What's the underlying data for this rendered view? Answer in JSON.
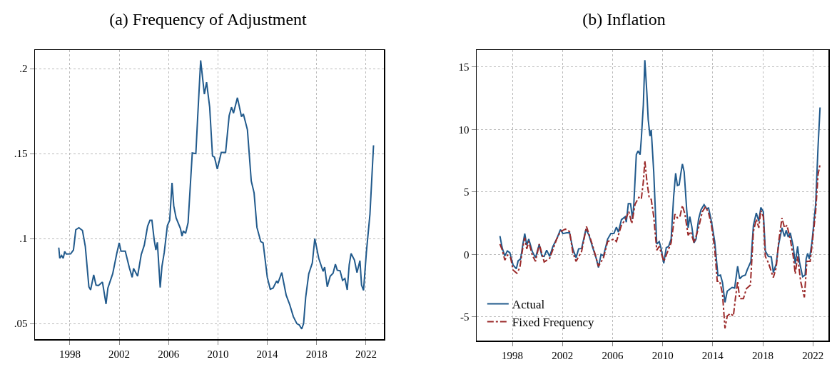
{
  "chart_data": [
    {
      "type": "line",
      "title": "(a) Frequency of Adjustment",
      "xlim": [
        1995.17,
        2023.45
      ],
      "ylim": [
        0.0408,
        0.211
      ],
      "xticks": [
        1998,
        2002,
        2006,
        2010,
        2014,
        2018,
        2022
      ],
      "yticks": [
        {
          "value": 0.05,
          "label": ".05"
        },
        {
          "value": 0.1,
          "label": ".1"
        },
        {
          "value": 0.15,
          "label": ".15"
        },
        {
          "value": 0.2,
          "label": ".2"
        }
      ],
      "grid": true,
      "legend": false,
      "marker": "none",
      "series": [
        {
          "color": "#215a8c",
          "line_style": "solid",
          "x": [
            1997.1,
            1997.18,
            1997.33,
            1997.46,
            1997.58,
            1997.71,
            1998.06,
            1998.29,
            1998.48,
            1998.73,
            1999.02,
            1999.25,
            1999.54,
            1999.68,
            1999.93,
            2000.12,
            2000.31,
            2000.64,
            2000.93,
            2001.08,
            2001.47,
            2001.8,
            2002.0,
            2002.14,
            2002.49,
            2002.82,
            2003.05,
            2003.16,
            2003.49,
            2003.78,
            2004.03,
            2004.3,
            2004.49,
            2004.65,
            2004.84,
            2004.97,
            2005.09,
            2005.32,
            2005.46,
            2005.65,
            2005.9,
            2006.09,
            2006.28,
            2006.42,
            2006.61,
            2006.96,
            2007.09,
            2007.19,
            2007.38,
            2007.58,
            2007.92,
            2008.21,
            2008.36,
            2008.6,
            2008.9,
            2009.08,
            2009.33,
            2009.56,
            2009.72,
            2009.95,
            2010.27,
            2010.62,
            2010.91,
            2011.1,
            2011.26,
            2011.58,
            2011.91,
            2012.06,
            2012.39,
            2012.7,
            2012.93,
            2013.16,
            2013.47,
            2013.66,
            2014.0,
            2014.24,
            2014.47,
            2014.76,
            2014.86,
            2015.17,
            2015.53,
            2015.82,
            2016.11,
            2016.4,
            2016.59,
            2016.79,
            2016.94,
            2017.11,
            2017.36,
            2017.65,
            2017.85,
            2018.17,
            2018.52,
            2018.65,
            2018.86,
            2019.1,
            2019.33,
            2019.52,
            2019.67,
            2019.9,
            2020.1,
            2020.29,
            2020.48,
            2020.64,
            2020.79,
            2021.06,
            2021.27,
            2021.51,
            2021.64,
            2021.8,
            2022.03,
            2022.32,
            2022.61
          ],
          "values": [
            0.0947,
            0.0884,
            0.09,
            0.0884,
            0.0924,
            0.0909,
            0.091,
            0.0933,
            0.1052,
            0.1064,
            0.1048,
            0.0954,
            0.0716,
            0.0698,
            0.0786,
            0.0726,
            0.0723,
            0.0744,
            0.0615,
            0.0709,
            0.0793,
            0.0912,
            0.0975,
            0.0926,
            0.0926,
            0.0828,
            0.0772,
            0.0824,
            0.0779,
            0.0905,
            0.0961,
            0.1073,
            0.1108,
            0.1108,
            0.0989,
            0.0933,
            0.0978,
            0.0712,
            0.0835,
            0.0919,
            0.1076,
            0.1108,
            0.1328,
            0.1192,
            0.1122,
            0.1059,
            0.1014,
            0.1045,
            0.1031,
            0.1094,
            0.1504,
            0.15,
            0.1717,
            0.2049,
            0.185,
            0.192,
            0.1773,
            0.1486,
            0.1479,
            0.1409,
            0.1507,
            0.1507,
            0.1724,
            0.1773,
            0.1738,
            0.1829,
            0.1717,
            0.1734,
            0.164,
            0.1339,
            0.1269,
            0.1066,
            0.0982,
            0.0975,
            0.0772,
            0.0702,
            0.0709,
            0.0751,
            0.0737,
            0.08,
            0.0667,
            0.0611,
            0.0541,
            0.0499,
            0.0492,
            0.0468,
            0.0499,
            0.0653,
            0.0793,
            0.0856,
            0.1,
            0.0884,
            0.0807,
            0.0832,
            0.0716,
            0.0779,
            0.0796,
            0.0849,
            0.0814,
            0.081,
            0.0754,
            0.0765,
            0.0698,
            0.0846,
            0.0912,
            0.0874,
            0.08,
            0.087,
            0.0726,
            0.0695,
            0.0919,
            0.1143,
            0.1549
          ]
        }
      ]
    },
    {
      "type": "line",
      "title": "(b) Inflation",
      "xlim": [
        1995.15,
        2023.24
      ],
      "ylim": [
        -6.9,
        16.37
      ],
      "xticks": [
        1998,
        2002,
        2006,
        2010,
        2014,
        2018,
        2022
      ],
      "yticks": [
        -5,
        0,
        5,
        10,
        15
      ],
      "grid": true,
      "legend": "bottom left",
      "marker": "none",
      "series": [
        {
          "name": "Actual",
          "color": "#215a8c",
          "line_style": "solid",
          "x": [
            1997.01,
            1997.2,
            1997.4,
            1997.6,
            1997.8,
            1998.06,
            1998.32,
            1998.46,
            1998.66,
            1998.85,
            1998.99,
            1999.15,
            1999.31,
            1999.59,
            1999.85,
            2000.15,
            2000.35,
            2000.54,
            2000.74,
            2000.98,
            2001.24,
            2001.54,
            2001.84,
            2002.04,
            2002.34,
            2002.57,
            2002.83,
            2003.09,
            2003.29,
            2003.53,
            2003.88,
            2004.12,
            2004.42,
            2004.68,
            2004.88,
            2005.08,
            2005.28,
            2005.61,
            2005.87,
            2006.11,
            2006.31,
            2006.47,
            2006.71,
            2007.01,
            2007.1,
            2007.26,
            2007.44,
            2007.6,
            2007.7,
            2007.9,
            2008.04,
            2008.2,
            2008.3,
            2008.46,
            2008.58,
            2008.74,
            2008.85,
            2008.99,
            2009.09,
            2009.29,
            2009.53,
            2009.73,
            2009.89,
            2010.09,
            2010.29,
            2010.48,
            2010.68,
            2010.88,
            2011.04,
            2011.18,
            2011.32,
            2011.44,
            2011.58,
            2011.72,
            2011.92,
            2012.04,
            2012.17,
            2012.33,
            2012.51,
            2012.67,
            2012.87,
            2013.07,
            2013.31,
            2013.51,
            2013.67,
            2013.9,
            2014.16,
            2014.42,
            2014.62,
            2014.78,
            2014.98,
            2015.16,
            2015.36,
            2015.55,
            2015.75,
            2015.99,
            2016.15,
            2016.35,
            2016.61,
            2016.75,
            2017.05,
            2017.25,
            2017.48,
            2017.68,
            2017.84,
            2018.04,
            2018.2,
            2018.44,
            2018.68,
            2018.84,
            2019.07,
            2019.27,
            2019.53,
            2019.73,
            2019.87,
            2020.03,
            2020.19,
            2020.43,
            2020.59,
            2020.78,
            2020.92,
            2021.18,
            2021.38,
            2021.46,
            2021.58,
            2021.72,
            2021.92,
            2022.22,
            2022.41,
            2022.57
          ],
          "values": [
            1.47,
            0.48,
            -0.12,
            0.28,
            0.14,
            -0.85,
            -1.15,
            -0.52,
            -0.36,
            0.87,
            1.67,
            0.74,
            1.23,
            0.24,
            -0.26,
            0.8,
            -0.12,
            -0.16,
            0.34,
            -0.16,
            0.64,
            1.23,
            1.99,
            1.67,
            1.73,
            1.73,
            0.44,
            -0.26,
            0.44,
            0.48,
            2.03,
            1.53,
            0.54,
            -0.26,
            -1.05,
            0.0,
            -0.12,
            1.23,
            1.67,
            1.67,
            2.19,
            1.79,
            2.78,
            3.02,
            2.58,
            4.06,
            4.06,
            2.82,
            4.02,
            7.99,
            8.29,
            7.99,
            9.28,
            11.97,
            15.55,
            12.96,
            10.78,
            9.48,
            9.98,
            6.6,
            0.83,
            1.03,
            0.44,
            -0.72,
            0.54,
            0.64,
            1.23,
            4.61,
            6.5,
            5.51,
            5.57,
            6.4,
            7.24,
            6.6,
            3.62,
            2.13,
            3.02,
            2.23,
            0.93,
            1.23,
            2.82,
            3.58,
            3.98,
            3.66,
            3.72,
            2.62,
            1.03,
            -1.71,
            -1.65,
            -2.25,
            -3.84,
            -2.94,
            -2.78,
            -2.64,
            -2.7,
            -0.95,
            -1.95,
            -1.75,
            -1.65,
            -1.25,
            -0.56,
            2.33,
            3.32,
            2.66,
            3.76,
            3.42,
            0.28,
            -0.16,
            -0.2,
            -1.45,
            -0.76,
            0.83,
            2.13,
            1.43,
            1.93,
            1.39,
            1.73,
            0.64,
            -0.76,
            0.64,
            -0.56,
            -1.79,
            -1.65,
            -0.36,
            0.08,
            -0.36,
            0.93,
            4.02,
            8.59,
            11.77
          ]
        },
        {
          "name": "Fixed Frequency",
          "color": "#9b2a2a",
          "line_style": "dashed",
          "x": [
            1997.01,
            1997.2,
            1997.4,
            1997.6,
            1997.86,
            1998.06,
            1998.36,
            1998.6,
            1998.85,
            1998.99,
            1999.15,
            1999.31,
            1999.59,
            1999.85,
            2000.15,
            2000.54,
            2000.98,
            2001.54,
            2001.84,
            2002.24,
            2002.57,
            2002.83,
            2003.09,
            2003.53,
            2003.92,
            2004.42,
            2004.88,
            2005.28,
            2005.61,
            2006.11,
            2006.31,
            2006.71,
            2007.01,
            2007.3,
            2007.54,
            2007.8,
            2008.1,
            2008.3,
            2008.46,
            2008.58,
            2008.74,
            2008.93,
            2009.09,
            2009.29,
            2009.53,
            2009.73,
            2010.09,
            2010.29,
            2010.68,
            2010.98,
            2011.18,
            2011.38,
            2011.58,
            2011.78,
            2012.04,
            2012.23,
            2012.51,
            2012.87,
            2013.17,
            2013.43,
            2013.67,
            2013.9,
            2014.16,
            2014.36,
            2014.56,
            2014.78,
            2014.98,
            2015.16,
            2015.41,
            2015.65,
            2015.81,
            2015.99,
            2016.15,
            2016.45,
            2016.69,
            2017.01,
            2017.25,
            2017.48,
            2017.68,
            2017.84,
            2018.04,
            2018.2,
            2018.44,
            2018.84,
            2019.07,
            2019.27,
            2019.53,
            2019.73,
            2019.93,
            2020.19,
            2020.43,
            2020.59,
            2020.78,
            2021.02,
            2021.32,
            2021.52,
            2021.78,
            2021.92,
            2022.22,
            2022.41,
            2022.57
          ],
          "values": [
            0.83,
            0.34,
            -0.46,
            -0.06,
            -0.26,
            -1.25,
            -1.51,
            -1.05,
            0.64,
            1.33,
            0.44,
            1.03,
            -0.06,
            -0.56,
            0.83,
            -0.6,
            -0.32,
            1.23,
            1.83,
            2.03,
            1.83,
            0.14,
            -0.56,
            0.24,
            2.23,
            0.68,
            -0.95,
            -0.26,
            1.03,
            1.23,
            1.03,
            2.33,
            2.78,
            3.42,
            2.47,
            4.02,
            4.57,
            4.45,
            5.81,
            7.5,
            5.9,
            4.51,
            4.41,
            3.02,
            0.34,
            0.64,
            -0.56,
            -0.06,
            0.93,
            3.22,
            2.92,
            3.02,
            3.92,
            3.22,
            1.53,
            1.83,
            0.93,
            2.13,
            3.42,
            3.82,
            3.32,
            2.33,
            0.44,
            -2.15,
            -2.15,
            -3.14,
            -5.92,
            -4.93,
            -4.73,
            -4.93,
            -3.54,
            -2.15,
            -3.54,
            -3.54,
            -2.74,
            -2.45,
            1.83,
            2.82,
            2.13,
            3.52,
            3.02,
            -0.16,
            -0.66,
            -1.85,
            -1.05,
            1.03,
            2.92,
            2.13,
            2.33,
            1.23,
            -0.16,
            -1.55,
            -0.16,
            -2.15,
            -3.44,
            -0.56,
            -0.56,
            0.64,
            3.42,
            6.4,
            7.2
          ]
        }
      ]
    }
  ]
}
